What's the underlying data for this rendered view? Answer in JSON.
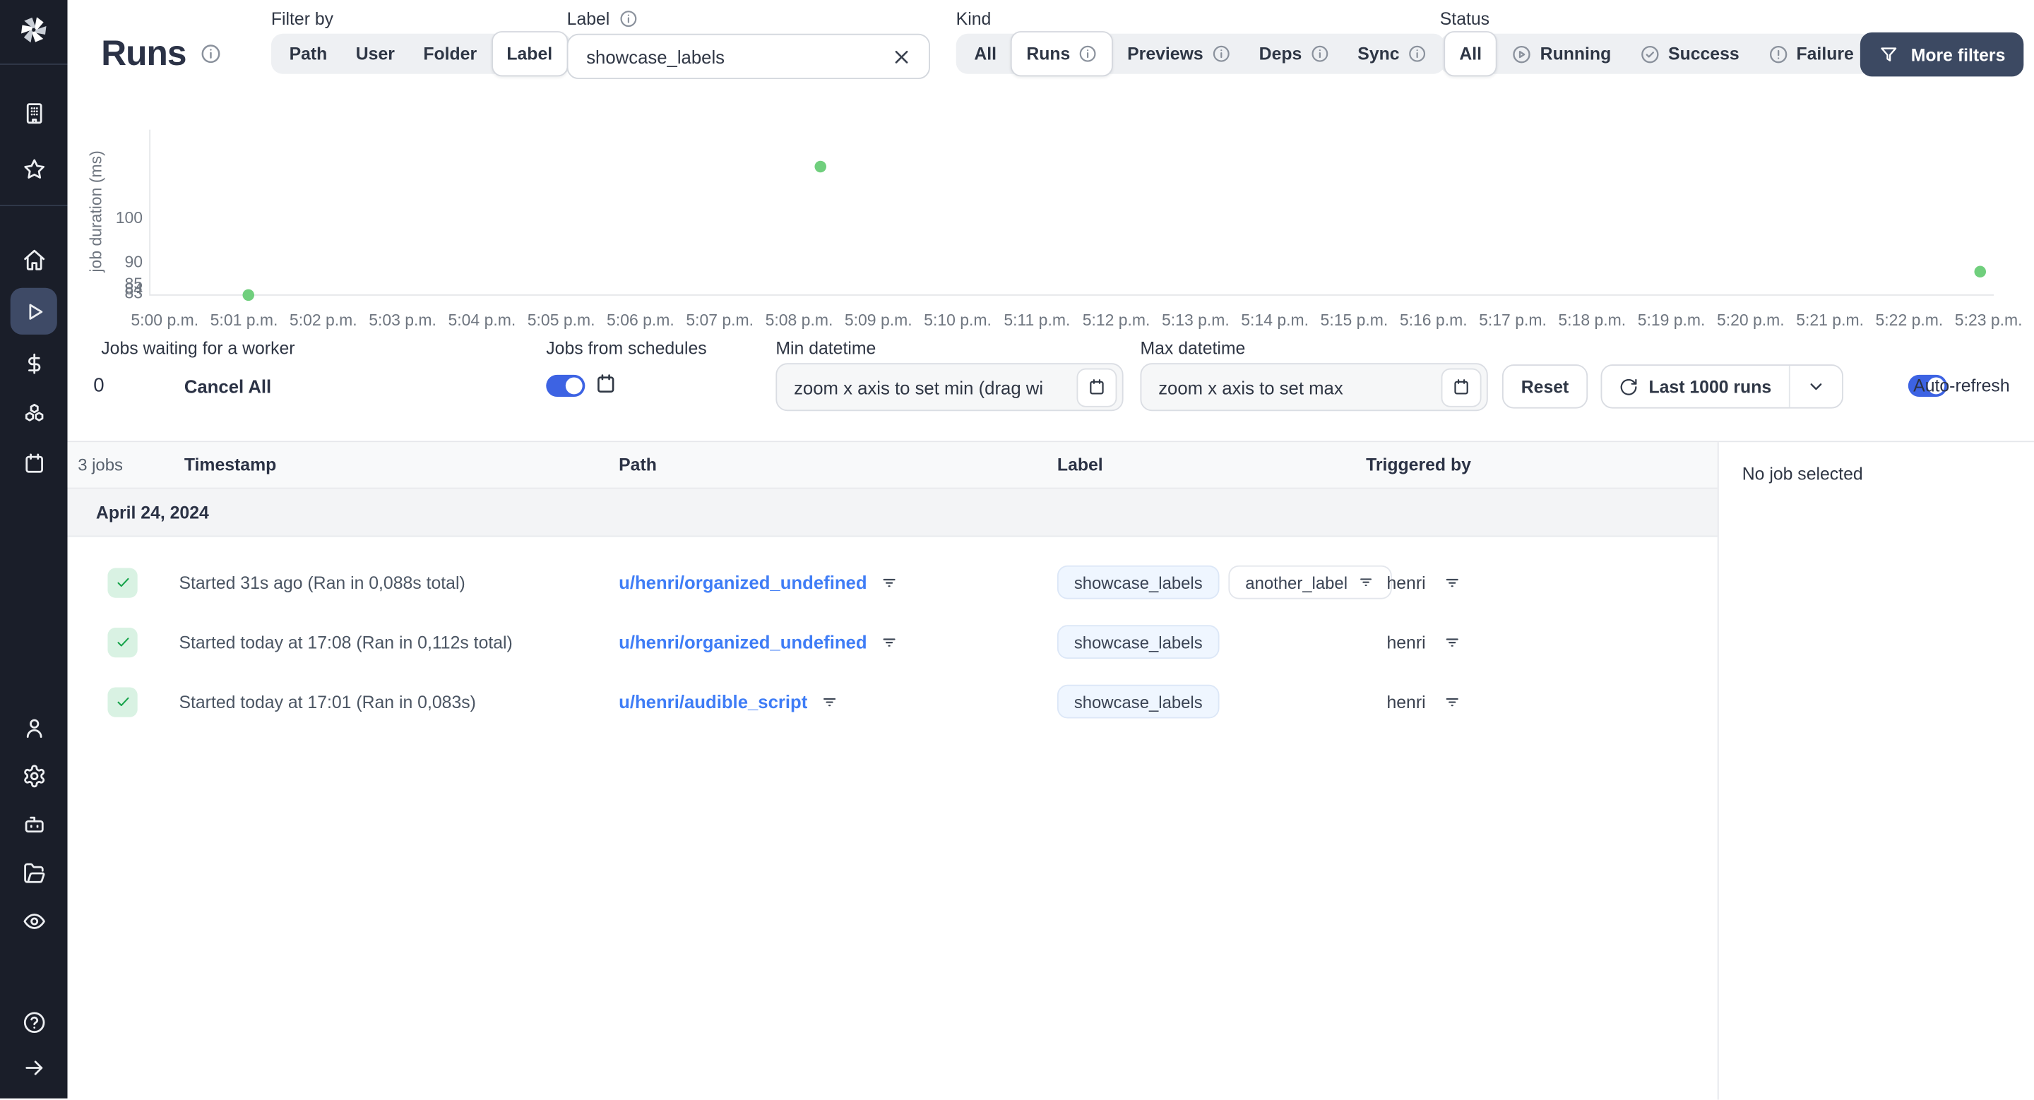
{
  "app": {
    "name": "Windmill"
  },
  "header": {
    "title": "Runs",
    "filter_by": {
      "label": "Filter by",
      "options": [
        "Path",
        "User",
        "Folder",
        "Label"
      ],
      "selected": "Label"
    },
    "label_filter": {
      "label": "Label",
      "value": "showcase_labels"
    },
    "kind": {
      "label": "Kind",
      "options": [
        "All",
        "Runs",
        "Previews",
        "Deps",
        "Sync"
      ],
      "selected": "Runs"
    },
    "status": {
      "label": "Status",
      "options": [
        "All",
        "Running",
        "Success",
        "Failure"
      ],
      "selected": "All"
    },
    "more_filters_label": "More filters"
  },
  "chart_data": {
    "type": "scatter",
    "ylabel": "job duration (ms)",
    "xlabel": "",
    "ylim": [
      83,
      120
    ],
    "grid": false,
    "legend": "none",
    "y_ticks": [
      100,
      90,
      85,
      84,
      83
    ],
    "x_ticks": [
      "5:00 p.m.",
      "5:01 p.m.",
      "5:02 p.m.",
      "5:03 p.m.",
      "5:04 p.m.",
      "5:05 p.m.",
      "5:06 p.m.",
      "5:07 p.m.",
      "5:08 p.m.",
      "5:09 p.m.",
      "5:10 p.m.",
      "5:11 p.m.",
      "5:12 p.m.",
      "5:13 p.m.",
      "5:14 p.m.",
      "5:15 p.m.",
      "5:16 p.m.",
      "5:17 p.m.",
      "5:18 p.m.",
      "5:19 p.m.",
      "5:20 p.m.",
      "5:21 p.m.",
      "5:22 p.m.",
      "5:23 p.m."
    ],
    "points": [
      {
        "time": "5:01 p.m.",
        "minutes_after_5pm": 1.05,
        "duration_ms": 83
      },
      {
        "time": "5:08 p.m.",
        "minutes_after_5pm": 8.27,
        "duration_ms": 112
      },
      {
        "time": "5:23 p.m.",
        "minutes_after_5pm": 22.9,
        "duration_ms": 88
      }
    ],
    "point_color": "#70cf7d"
  },
  "controls": {
    "jobs_waiting": {
      "label": "Jobs waiting for a worker",
      "count": "0",
      "cancel_all_label": "Cancel All"
    },
    "jobs_from_schedules": {
      "label": "Jobs from schedules",
      "enabled": true
    },
    "min_datetime": {
      "label": "Min datetime",
      "placeholder": "zoom x axis to set min (drag wi"
    },
    "max_datetime": {
      "label": "Max datetime",
      "placeholder": "zoom x axis to set max"
    },
    "reset_label": "Reset",
    "runs_range_label": "Last 1000 runs",
    "auto_refresh": {
      "label": "Auto-refresh",
      "enabled": true
    }
  },
  "table": {
    "jobs_count": "3 jobs",
    "columns": [
      "Timestamp",
      "Path",
      "Label",
      "Triggered by"
    ],
    "date_group": "April 24, 2024",
    "rows": [
      {
        "status": "success",
        "timestamp": "Started 31s ago (Ran in 0,088s total)",
        "path": "u/henri/organized_undefined",
        "labels": [
          "showcase_labels",
          "another_label"
        ],
        "triggered_by": "henri"
      },
      {
        "status": "success",
        "timestamp": "Started today at 17:08 (Ran in 0,112s total)",
        "path": "u/henri/organized_undefined",
        "labels": [
          "showcase_labels"
        ],
        "triggered_by": "henri"
      },
      {
        "status": "success",
        "timestamp": "Started today at 17:01 (Ran in 0,083s)",
        "path": "u/henri/audible_script",
        "labels": [
          "showcase_labels"
        ],
        "triggered_by": "henri"
      }
    ]
  },
  "detail_panel": {
    "empty_text": "No job selected"
  },
  "colors": {
    "sidebar_bg": "#1a1e29",
    "sidebar_selected_bg": "#3e4a66",
    "toggle_on": "#3d63e3",
    "more_filters_bg": "#3c4962",
    "link_blue": "#3f7df6",
    "label_chip_bg": "#eff6ff",
    "success_icon_bg": "#d9f2e3",
    "success_icon_check": "#16a34a",
    "chart_point_green": "#70cf7d"
  }
}
